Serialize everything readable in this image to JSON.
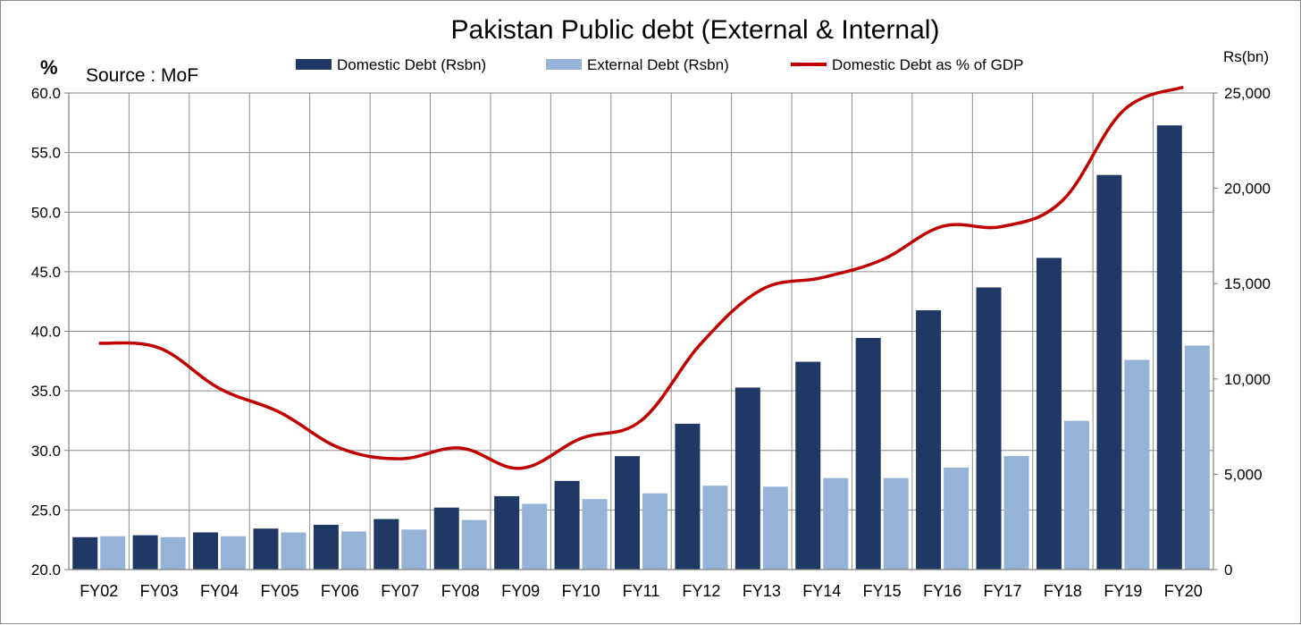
{
  "chart_data": {
    "type": "bar",
    "title": "Pakistan Public debt (External & Internal)",
    "annotation": "Source : MoF",
    "ylabel_left": "%",
    "ylabel_right": "Rs(bn)",
    "categories": [
      "FY02",
      "FY03",
      "FY04",
      "FY05",
      "FY06",
      "FY07",
      "FY08",
      "FY09",
      "FY10",
      "FY11",
      "FY12",
      "FY13",
      "FY14",
      "FY15",
      "FY16",
      "FY17",
      "FY18",
      "FY19",
      "FY20"
    ],
    "series": [
      {
        "name": "Domestic Debt (Rsbn)",
        "type": "bar",
        "axis": "right",
        "color": "#1f3864",
        "values": [
          1700,
          1800,
          1950,
          2150,
          2350,
          2650,
          3250,
          3850,
          4650,
          5950,
          7650,
          9550,
          10900,
          12150,
          13600,
          14800,
          16350,
          20700,
          23300
        ]
      },
      {
        "name": "External Debt (Rsbn)",
        "type": "bar",
        "axis": "right",
        "color": "#95b3d7",
        "values": [
          1750,
          1700,
          1750,
          1950,
          2000,
          2100,
          2600,
          3450,
          3700,
          4000,
          4400,
          4350,
          4800,
          4800,
          5350,
          5950,
          7800,
          11000,
          11750
        ]
      },
      {
        "name": "Domestic Debt as % of GDP",
        "type": "line",
        "axis": "left",
        "color": "#c00000",
        "values": [
          39.0,
          38.6,
          35.2,
          33.2,
          30.2,
          29.3,
          30.2,
          28.5,
          31.0,
          32.5,
          39.0,
          43.5,
          44.5,
          46.0,
          48.8,
          48.8,
          51.0,
          58.5,
          60.5
        ]
      }
    ],
    "ylim_left": [
      20,
      60
    ],
    "yticks_left": [
      "20.0",
      "25.0",
      "30.0",
      "35.0",
      "40.0",
      "45.0",
      "50.0",
      "55.0",
      "60.0"
    ],
    "ylim_right": [
      0,
      25000
    ],
    "yticks_right": [
      "0",
      "5,000",
      "10,000",
      "15,000",
      "20,000",
      "25,000"
    ],
    "grid": true,
    "legend_position": "top"
  }
}
